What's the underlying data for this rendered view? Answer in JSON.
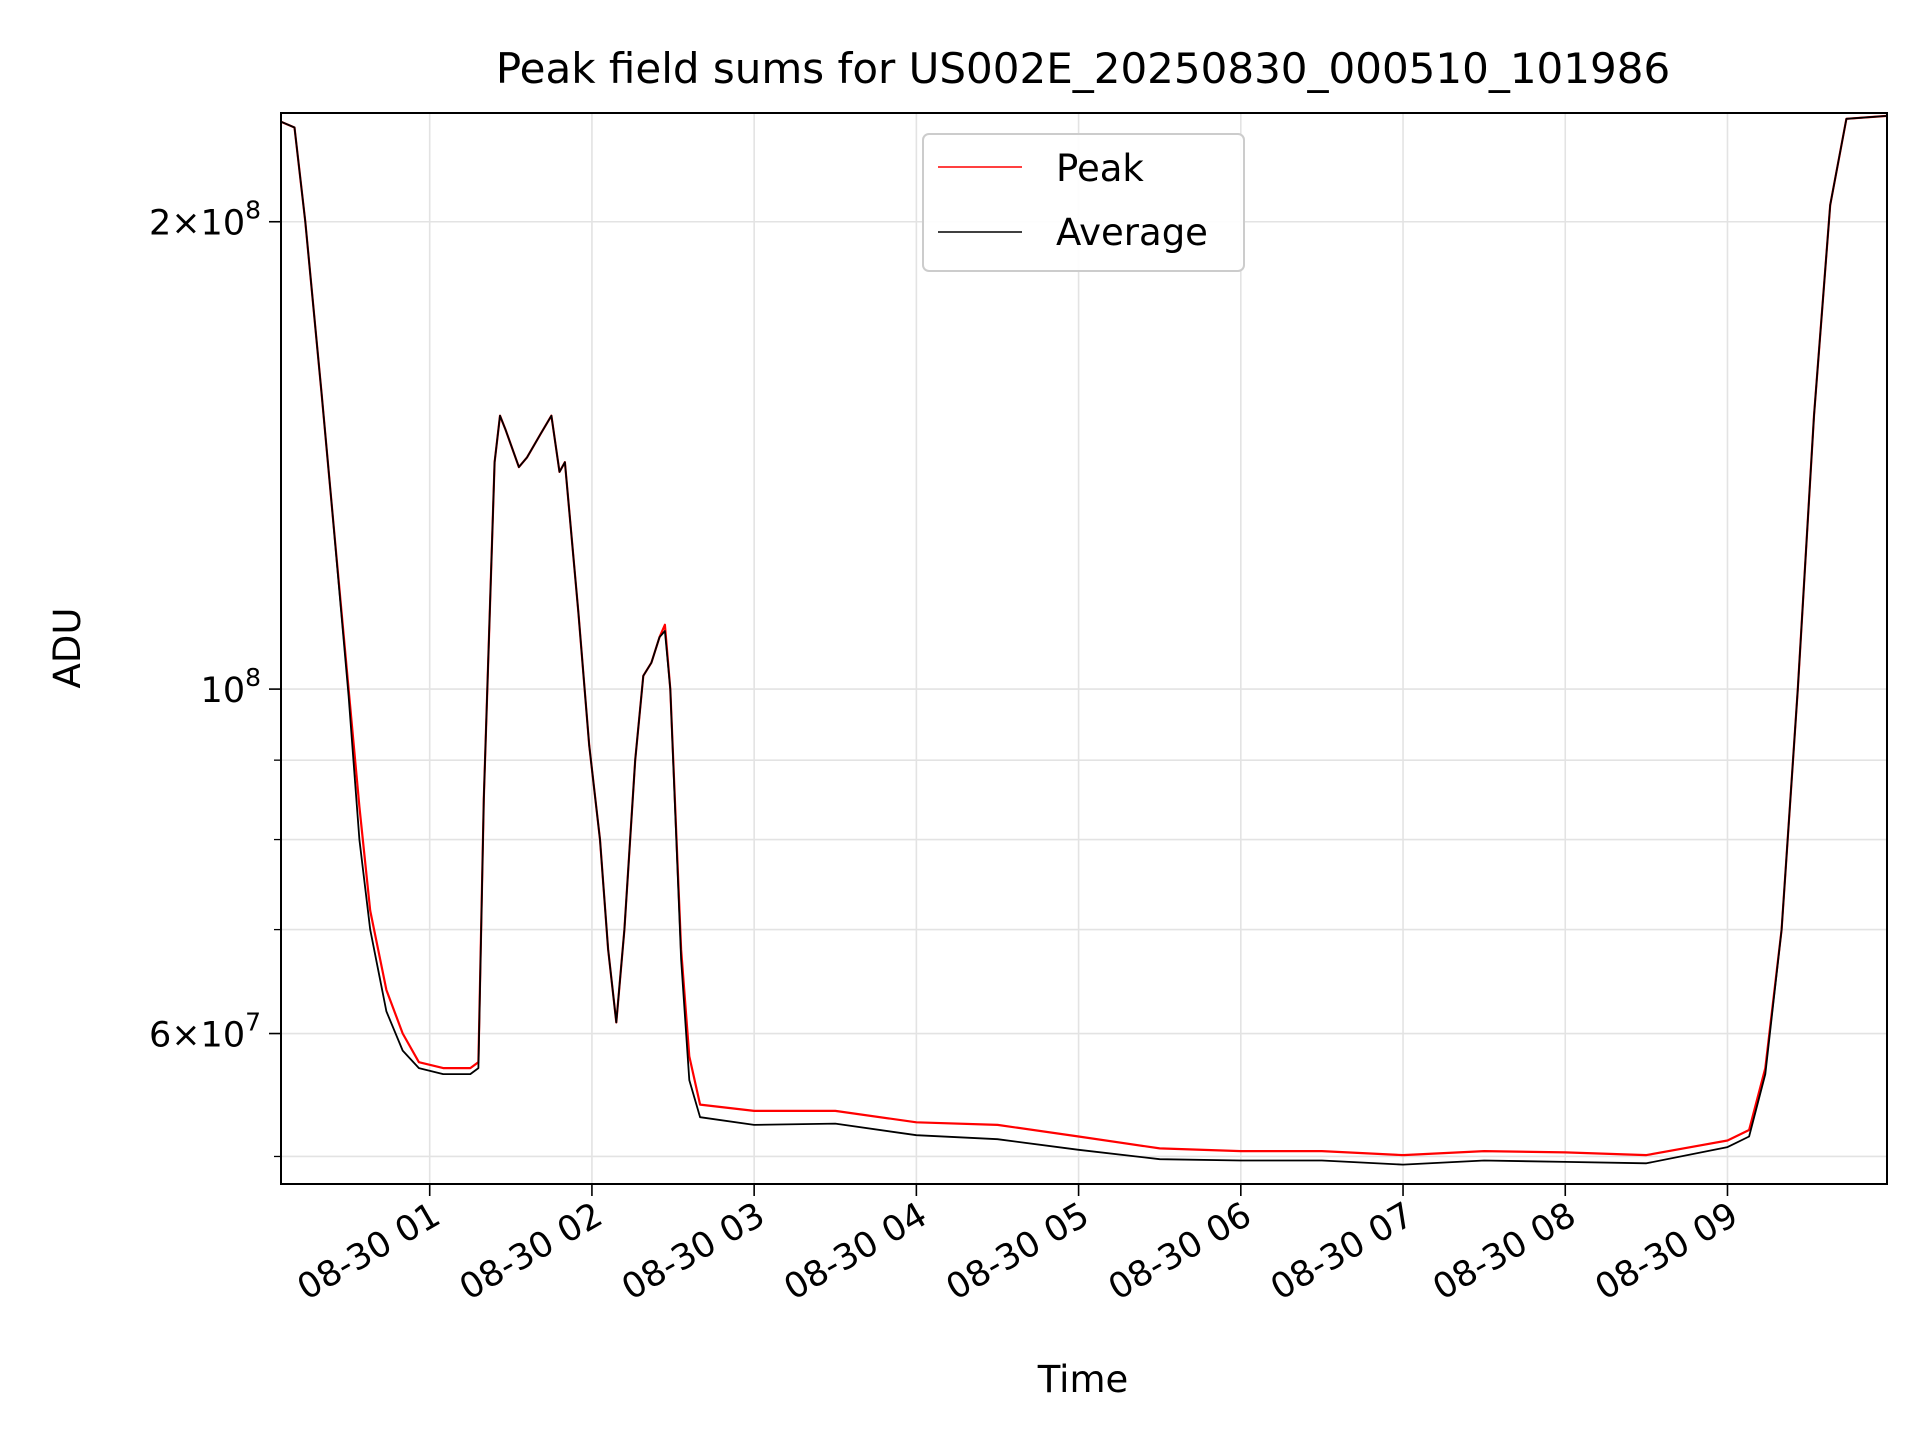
{
  "chart_data": {
    "type": "line",
    "title": "Peak field sums for US002E_20250830_000510_101986",
    "xlabel": "Time",
    "ylabel": "ADU",
    "y_scale": "log",
    "ylim": [
      48000000,
      235000000
    ],
    "xlim": [
      "2025-08-30 00:05",
      "2025-08-30 09:59"
    ],
    "grid": true,
    "legend_position": "upper center",
    "x_ticks": [
      "08-30 01",
      "08-30 02",
      "08-30 03",
      "08-30 04",
      "08-30 05",
      "08-30 06",
      "08-30 07",
      "08-30 08",
      "08-30 09"
    ],
    "x_tick_times": [
      "2025-08-30 01:00",
      "2025-08-30 02:00",
      "2025-08-30 03:00",
      "2025-08-30 04:00",
      "2025-08-30 05:00",
      "2025-08-30 06:00",
      "2025-08-30 07:00",
      "2025-08-30 08:00",
      "2025-08-30 09:00"
    ],
    "y_major_ticks": [
      {
        "value": 60000000,
        "mantissa": "6",
        "exponent": "7"
      },
      {
        "value": 100000000,
        "mantissa": "",
        "exponent": "8"
      },
      {
        "value": 200000000,
        "mantissa": "2",
        "exponent": "8"
      }
    ],
    "y_minor_ticks": [
      50000000,
      70000000,
      80000000,
      90000000
    ],
    "series": [
      {
        "name": "Peak",
        "color": "#ff0000",
        "points": [
          [
            "2025-08-30 00:05",
            232000000
          ],
          [
            "2025-08-30 00:10",
            230000000
          ],
          [
            "2025-08-30 00:14",
            200000000
          ],
          [
            "2025-08-30 00:20",
            155000000
          ],
          [
            "2025-08-30 00:24",
            130000000
          ],
          [
            "2025-08-30 00:30",
            100000000
          ],
          [
            "2025-08-30 00:34",
            84000000
          ],
          [
            "2025-08-30 00:38",
            72000000
          ],
          [
            "2025-08-30 00:44",
            64000000
          ],
          [
            "2025-08-30 00:50",
            60000000
          ],
          [
            "2025-08-30 00:56",
            57500000
          ],
          [
            "2025-08-30 01:05",
            57000000
          ],
          [
            "2025-08-30 01:15",
            57000000
          ],
          [
            "2025-08-30 01:18",
            57500000
          ],
          [
            "2025-08-30 01:20",
            85000000
          ],
          [
            "2025-08-30 01:24",
            140000000
          ],
          [
            "2025-08-30 01:26",
            150000000
          ],
          [
            "2025-08-30 01:28",
            147000000
          ],
          [
            "2025-08-30 01:33",
            139000000
          ],
          [
            "2025-08-30 01:36",
            141000000
          ],
          [
            "2025-08-30 01:41",
            146000000
          ],
          [
            "2025-08-30 01:45",
            150000000
          ],
          [
            "2025-08-30 01:48",
            138000000
          ],
          [
            "2025-08-30 01:50",
            140000000
          ],
          [
            "2025-08-30 01:55",
            112000000
          ],
          [
            "2025-08-30 01:59",
            92000000
          ],
          [
            "2025-08-30 02:03",
            80000000
          ],
          [
            "2025-08-30 02:06",
            68000000
          ],
          [
            "2025-08-30 02:09",
            61000000
          ],
          [
            "2025-08-30 02:12",
            70000000
          ],
          [
            "2025-08-30 02:16",
            90000000
          ],
          [
            "2025-08-30 02:19",
            102000000
          ],
          [
            "2025-08-30 02:22",
            104000000
          ],
          [
            "2025-08-30 02:25",
            108000000
          ],
          [
            "2025-08-30 02:27",
            110000000
          ],
          [
            "2025-08-30 02:29",
            100000000
          ],
          [
            "2025-08-30 02:33",
            68000000
          ],
          [
            "2025-08-30 02:36",
            58000000
          ],
          [
            "2025-08-30 02:40",
            54000000
          ],
          [
            "2025-08-30 03:00",
            53500000
          ],
          [
            "2025-08-30 03:30",
            53500000
          ],
          [
            "2025-08-30 04:00",
            52600000
          ],
          [
            "2025-08-30 04:30",
            52400000
          ],
          [
            "2025-08-30 05:00",
            51500000
          ],
          [
            "2025-08-30 05:30",
            50600000
          ],
          [
            "2025-08-30 06:00",
            50400000
          ],
          [
            "2025-08-30 06:30",
            50400000
          ],
          [
            "2025-08-30 07:00",
            50100000
          ],
          [
            "2025-08-30 07:30",
            50400000
          ],
          [
            "2025-08-30 08:00",
            50300000
          ],
          [
            "2025-08-30 08:30",
            50100000
          ],
          [
            "2025-08-30 09:00",
            51200000
          ],
          [
            "2025-08-30 09:08",
            52000000
          ],
          [
            "2025-08-30 09:14",
            57000000
          ],
          [
            "2025-08-30 09:20",
            70000000
          ],
          [
            "2025-08-30 09:26",
            100000000
          ],
          [
            "2025-08-30 09:32",
            150000000
          ],
          [
            "2025-08-30 09:38",
            205000000
          ],
          [
            "2025-08-30 09:44",
            233000000
          ],
          [
            "2025-08-30 09:59",
            234000000
          ]
        ]
      },
      {
        "name": "Average",
        "color": "#000000",
        "points": [
          [
            "2025-08-30 00:05",
            232000000
          ],
          [
            "2025-08-30 00:10",
            230000000
          ],
          [
            "2025-08-30 00:14",
            200000000
          ],
          [
            "2025-08-30 00:20",
            155000000
          ],
          [
            "2025-08-30 00:24",
            130000000
          ],
          [
            "2025-08-30 00:30",
            99000000
          ],
          [
            "2025-08-30 00:34",
            80000000
          ],
          [
            "2025-08-30 00:38",
            70000000
          ],
          [
            "2025-08-30 00:44",
            62000000
          ],
          [
            "2025-08-30 00:50",
            58500000
          ],
          [
            "2025-08-30 00:56",
            57000000
          ],
          [
            "2025-08-30 01:05",
            56500000
          ],
          [
            "2025-08-30 01:15",
            56500000
          ],
          [
            "2025-08-30 01:18",
            57000000
          ],
          [
            "2025-08-30 01:20",
            85000000
          ],
          [
            "2025-08-30 01:24",
            140000000
          ],
          [
            "2025-08-30 01:26",
            150000000
          ],
          [
            "2025-08-30 01:28",
            147000000
          ],
          [
            "2025-08-30 01:33",
            139000000
          ],
          [
            "2025-08-30 01:36",
            141000000
          ],
          [
            "2025-08-30 01:41",
            146000000
          ],
          [
            "2025-08-30 01:45",
            150000000
          ],
          [
            "2025-08-30 01:48",
            138000000
          ],
          [
            "2025-08-30 01:50",
            140000000
          ],
          [
            "2025-08-30 01:55",
            112000000
          ],
          [
            "2025-08-30 01:59",
            92000000
          ],
          [
            "2025-08-30 02:03",
            80000000
          ],
          [
            "2025-08-30 02:06",
            68000000
          ],
          [
            "2025-08-30 02:09",
            61000000
          ],
          [
            "2025-08-30 02:12",
            70000000
          ],
          [
            "2025-08-30 02:16",
            90000000
          ],
          [
            "2025-08-30 02:19",
            102000000
          ],
          [
            "2025-08-30 02:22",
            104000000
          ],
          [
            "2025-08-30 02:25",
            108000000
          ],
          [
            "2025-08-30 02:27",
            109000000
          ],
          [
            "2025-08-30 02:29",
            100000000
          ],
          [
            "2025-08-30 02:33",
            67000000
          ],
          [
            "2025-08-30 02:36",
            56000000
          ],
          [
            "2025-08-30 02:40",
            53000000
          ],
          [
            "2025-08-30 03:00",
            52400000
          ],
          [
            "2025-08-30 03:30",
            52500000
          ],
          [
            "2025-08-30 04:00",
            51600000
          ],
          [
            "2025-08-30 04:30",
            51300000
          ],
          [
            "2025-08-30 05:00",
            50500000
          ],
          [
            "2025-08-30 05:30",
            49800000
          ],
          [
            "2025-08-30 06:00",
            49700000
          ],
          [
            "2025-08-30 06:30",
            49700000
          ],
          [
            "2025-08-30 07:00",
            49400000
          ],
          [
            "2025-08-30 07:30",
            49700000
          ],
          [
            "2025-08-30 08:00",
            49600000
          ],
          [
            "2025-08-30 08:30",
            49500000
          ],
          [
            "2025-08-30 09:00",
            50700000
          ],
          [
            "2025-08-30 09:08",
            51500000
          ],
          [
            "2025-08-30 09:14",
            56500000
          ],
          [
            "2025-08-30 09:20",
            70000000
          ],
          [
            "2025-08-30 09:26",
            100000000
          ],
          [
            "2025-08-30 09:32",
            150000000
          ],
          [
            "2025-08-30 09:38",
            205000000
          ],
          [
            "2025-08-30 09:44",
            233000000
          ],
          [
            "2025-08-30 09:59",
            234000000
          ]
        ]
      }
    ]
  }
}
